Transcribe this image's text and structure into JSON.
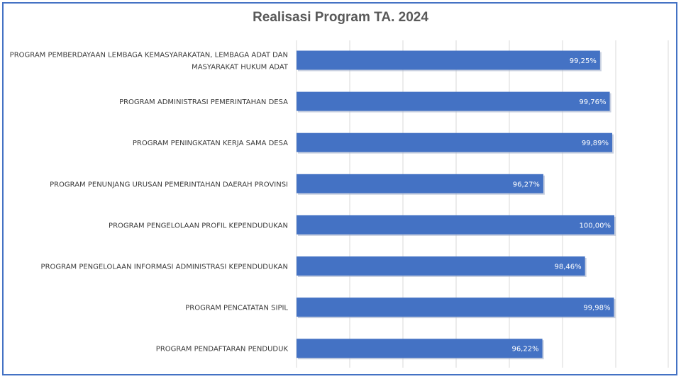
{
  "chart_data": {
    "type": "bar",
    "orientation": "horizontal",
    "title": "Realisasi Program TA. 2024",
    "xlabel": "",
    "ylabel": "",
    "xlim": [
      0,
      100
    ],
    "grid": true,
    "legend": "none",
    "bar_color": "#4472c4",
    "categories": [
      [
        "PROGRAM PEMBERDAYAAN LEMBAGA KEMASYARAKATAN, LEMBAGA ADAT DAN",
        "MASYARAKAT HUKUM ADAT"
      ],
      [
        "PROGRAM ADMINISTRASI PEMERINTAHAN DESA"
      ],
      [
        "PROGRAM PENINGKATAN KERJA SAMA DESA"
      ],
      [
        "PROGRAM PENUNJANG URUSAN PEMERINTAHAN DAERAH PROVINSI"
      ],
      [
        "PROGRAM PENGELOLAAN PROFIL KEPENDUDUKAN"
      ],
      [
        "PROGRAM PENGELOLAAN INFORMASI ADMINISTRASI KEPENDUDUKAN"
      ],
      [
        "PROGRAM PENCATATAN SIPIL"
      ],
      [
        "PROGRAM PENDAFTARAN PENDUDUK"
      ]
    ],
    "values": [
      99.25,
      99.76,
      99.89,
      96.27,
      100.0,
      98.46,
      99.98,
      96.22
    ],
    "data_labels": [
      "99,25%",
      "99,76%",
      "99,89%",
      "96,27%",
      "100,00%",
      "98,46%",
      "99,98%",
      "96,22%"
    ]
  }
}
